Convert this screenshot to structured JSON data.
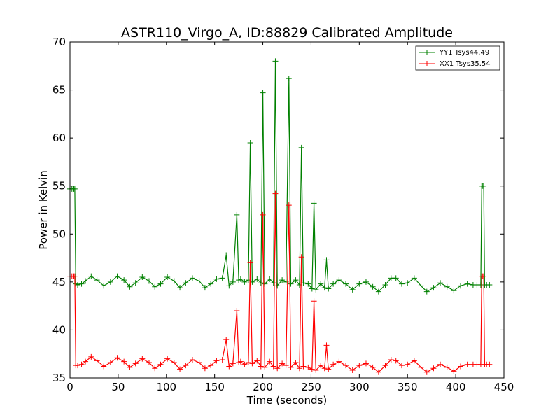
{
  "chart_data": {
    "type": "line",
    "title": "ASTR110_Virgo_A, ID:88829 Calibrated Amplitude",
    "xlabel": "Time (seconds)",
    "ylabel": "Power in Kelvin",
    "xlim": [
      0,
      450
    ],
    "ylim": [
      35,
      70
    ],
    "xticks": [
      "0",
      "50",
      "100",
      "150",
      "200",
      "250",
      "300",
      "350",
      "400",
      "450"
    ],
    "yticks": [
      "35",
      "40",
      "45",
      "50",
      "55",
      "60",
      "65",
      "70"
    ],
    "grid": false,
    "legend": "top-right",
    "marker": "plus",
    "series": [
      {
        "name": "YY1 Tsys44.49",
        "color": "#008000",
        "x": [
          0,
          2,
          4,
          5,
          6,
          8,
          12,
          16,
          22,
          28,
          35,
          42,
          49,
          56,
          62,
          68,
          75,
          82,
          88,
          94,
          101,
          108,
          114,
          120,
          127,
          134,
          140,
          146,
          152,
          158,
          162,
          165,
          169,
          173,
          175,
          177,
          181,
          185,
          187,
          189,
          194,
          198,
          200,
          202,
          207,
          211,
          213,
          215,
          220,
          224,
          227,
          229,
          234,
          238,
          240,
          242,
          247,
          251,
          253,
          255,
          260,
          264,
          266,
          268,
          273,
          279,
          286,
          293,
          300,
          307,
          314,
          320,
          327,
          333,
          338,
          344,
          350,
          357,
          364,
          370,
          377,
          384,
          391,
          398,
          405,
          412,
          418,
          422,
          426,
          427,
          428,
          429,
          430,
          432,
          435
        ],
        "values": [
          54.7,
          54.7,
          54.7,
          54.7,
          44.8,
          44.7,
          44.8,
          45.1,
          45.6,
          45.2,
          44.6,
          45.0,
          45.6,
          45.2,
          44.5,
          44.9,
          45.5,
          45.1,
          44.5,
          44.8,
          45.5,
          45.1,
          44.4,
          44.9,
          45.4,
          45.1,
          44.4,
          44.8,
          45.3,
          45.4,
          47.8,
          44.6,
          45.0,
          52.0,
          45.2,
          45.3,
          45.0,
          45.2,
          59.5,
          45.0,
          45.3,
          44.9,
          64.7,
          44.8,
          45.3,
          44.9,
          68.0,
          44.6,
          45.2,
          45.0,
          66.2,
          44.8,
          45.2,
          44.7,
          59.0,
          44.9,
          44.8,
          44.3,
          53.2,
          44.2,
          44.8,
          44.4,
          47.3,
          44.3,
          44.8,
          45.2,
          44.8,
          44.2,
          44.8,
          45.0,
          44.5,
          44.0,
          44.7,
          45.4,
          45.4,
          44.8,
          44.9,
          45.4,
          44.6,
          44.0,
          44.4,
          44.9,
          44.5,
          44.1,
          44.6,
          44.8,
          44.7,
          44.7,
          44.7,
          55.0,
          55.0,
          55.0,
          44.7,
          44.7,
          44.7
        ]
      },
      {
        "name": "XX1 Tsys35.54",
        "color": "#ff0000",
        "x": [
          0,
          2,
          4,
          5,
          6,
          8,
          12,
          16,
          22,
          28,
          35,
          42,
          49,
          56,
          62,
          68,
          75,
          82,
          88,
          94,
          101,
          108,
          114,
          120,
          127,
          134,
          140,
          146,
          152,
          158,
          162,
          165,
          169,
          173,
          175,
          177,
          181,
          185,
          187,
          189,
          194,
          198,
          200,
          202,
          207,
          211,
          213,
          215,
          220,
          224,
          227,
          229,
          234,
          238,
          240,
          242,
          247,
          251,
          253,
          255,
          260,
          264,
          266,
          268,
          273,
          279,
          286,
          293,
          300,
          307,
          314,
          320,
          327,
          333,
          338,
          344,
          350,
          357,
          364,
          370,
          377,
          384,
          391,
          398,
          405,
          412,
          418,
          422,
          426,
          427,
          428,
          429,
          430,
          432,
          435
        ],
        "values": [
          45.6,
          45.6,
          45.6,
          45.6,
          36.3,
          36.3,
          36.4,
          36.7,
          37.2,
          36.8,
          36.2,
          36.6,
          37.1,
          36.7,
          36.1,
          36.5,
          37.0,
          36.6,
          36.0,
          36.4,
          37.0,
          36.6,
          35.9,
          36.3,
          36.9,
          36.6,
          36.0,
          36.3,
          36.8,
          36.9,
          39.0,
          36.2,
          36.5,
          42.0,
          36.6,
          36.7,
          36.4,
          36.6,
          47.0,
          36.5,
          36.8,
          36.2,
          52.0,
          36.1,
          36.7,
          36.2,
          54.2,
          36.0,
          36.5,
          36.3,
          53.0,
          36.1,
          36.6,
          36.0,
          47.6,
          36.2,
          36.1,
          35.9,
          43.0,
          35.8,
          36.3,
          36.0,
          38.4,
          35.9,
          36.4,
          36.7,
          36.3,
          35.8,
          36.3,
          36.5,
          36.1,
          35.6,
          36.3,
          36.9,
          36.8,
          36.3,
          36.4,
          36.8,
          36.1,
          35.6,
          36.0,
          36.4,
          36.1,
          35.7,
          36.2,
          36.4,
          36.4,
          36.4,
          36.4,
          45.6,
          45.6,
          45.6,
          36.4,
          36.4,
          36.4
        ]
      }
    ]
  }
}
